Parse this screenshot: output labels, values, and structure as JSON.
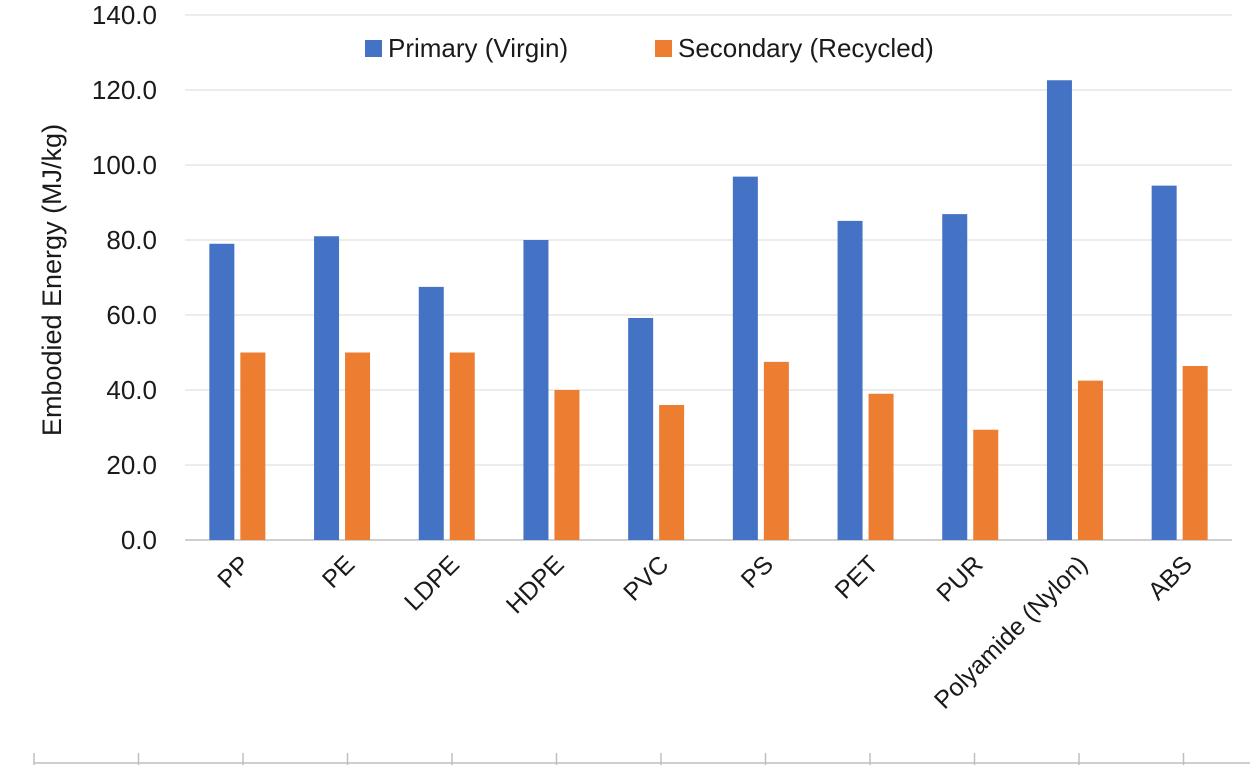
{
  "chart_data": {
    "type": "bar",
    "title": "",
    "xlabel": "",
    "ylabel": "Embodied Energy (MJ/kg)",
    "ylim": [
      0,
      140
    ],
    "y_ticks": [
      0,
      20,
      40,
      60,
      80,
      100,
      120,
      140
    ],
    "y_tick_labels": [
      "0.0",
      "20.0",
      "40.0",
      "60.0",
      "80.0",
      "100.0",
      "120.0",
      "140.0"
    ],
    "grid": true,
    "legend_position": "top",
    "categories": [
      "PP",
      "PE",
      "LDPE",
      "HDPE",
      "PVC",
      "PS",
      "PET",
      "PUR",
      "Polyamide (Nylon)",
      "ABS"
    ],
    "series": [
      {
        "name": "Primary (Virgin)",
        "color": "#4472c4",
        "values": [
          79.0,
          81.0,
          67.5,
          80.0,
          59.2,
          96.9,
          85.1,
          86.9,
          122.6,
          94.5
        ]
      },
      {
        "name": "Secondary (Recycled)",
        "color": "#ed7d31",
        "values": [
          50.0,
          50.0,
          50.0,
          40.0,
          36.0,
          47.5,
          39.0,
          29.4,
          42.5,
          46.4
        ]
      }
    ]
  }
}
